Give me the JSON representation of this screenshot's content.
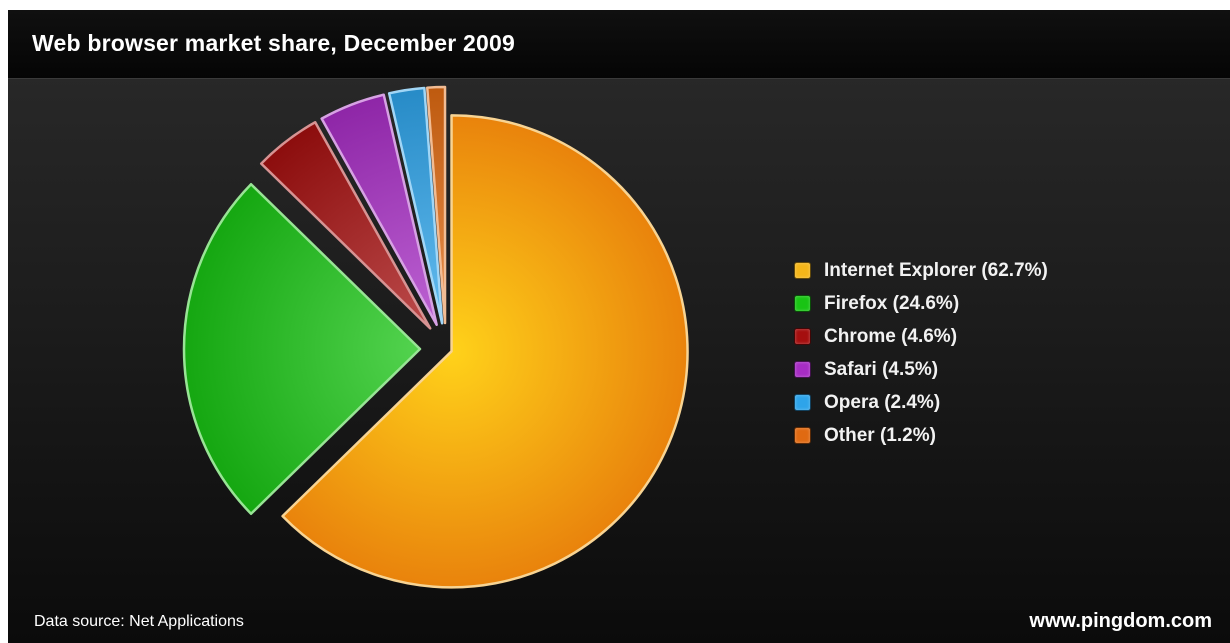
{
  "header": {
    "title": "Web browser market share, December 2009"
  },
  "chart_data": {
    "type": "pie",
    "title": "Web browser market share, December 2009",
    "unit": "%",
    "slices": [
      {
        "label": "Internet Explorer (62.7%)",
        "name": "Internet Explorer",
        "value": 62.7,
        "color": "#f0a010",
        "exploded": false
      },
      {
        "label": "Firefox (24.6%)",
        "name": "Firefox",
        "value": 24.6,
        "color": "#19c414",
        "exploded": true
      },
      {
        "label": "Chrome (4.6%)",
        "name": "Chrome",
        "value": 4.6,
        "color": "#a50f0f",
        "exploded": true
      },
      {
        "label": "Safari (4.5%)",
        "name": "Safari",
        "value": 4.5,
        "color": "#a72dc4",
        "exploded": true
      },
      {
        "label": "Opera (2.4%)",
        "name": "Opera",
        "value": 2.4,
        "color": "#2ea4ea",
        "exploded": true
      },
      {
        "label": "Other (1.2%)",
        "name": "Other",
        "value": 1.2,
        "color": "#e06a12",
        "exploded": true
      }
    ],
    "legend_position": "right"
  },
  "footer": {
    "source": "Data source: Net Applications",
    "site": "www.pingdom.com"
  }
}
